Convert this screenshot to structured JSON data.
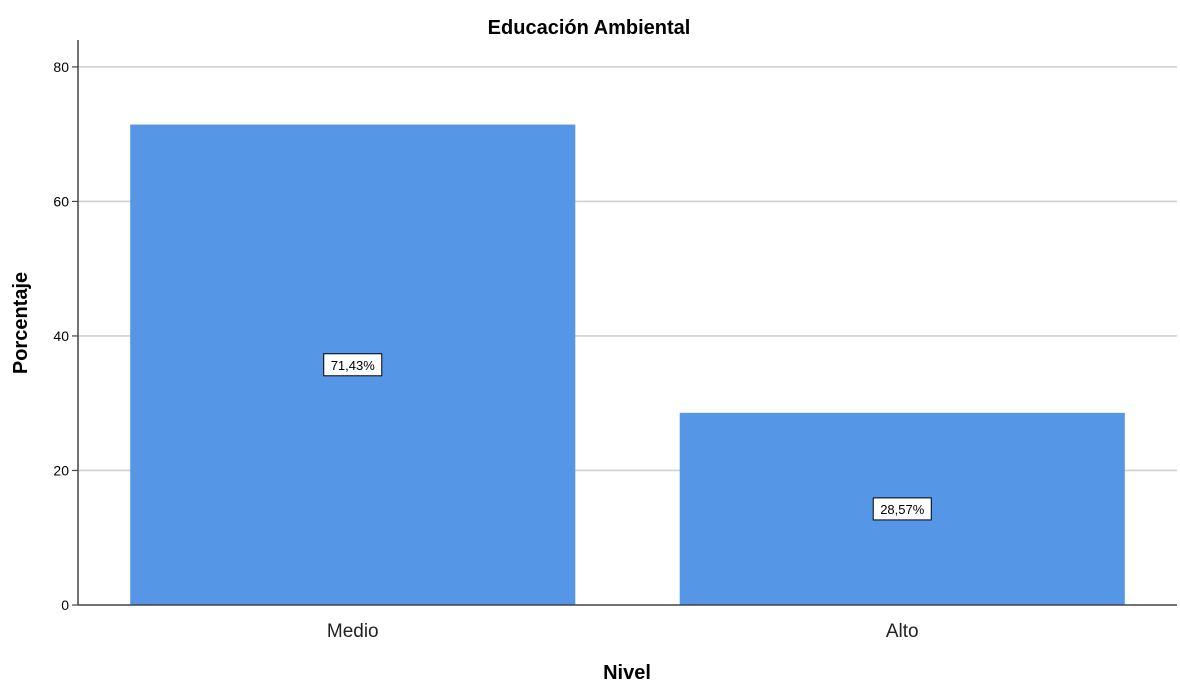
{
  "chart_data": {
    "type": "bar",
    "title": "Educación Ambiental",
    "xlabel": "Nivel",
    "ylabel": "Porcentaje",
    "categories": [
      "Medio",
      "Alto"
    ],
    "values": [
      71.43,
      28.57
    ],
    "data_labels": [
      "71,43%",
      "28,57%"
    ],
    "yticks": [
      "0",
      "20",
      "40",
      "60",
      "80"
    ],
    "ylim": [
      0,
      84
    ],
    "grid": true,
    "bar_color": "#5596e6"
  }
}
